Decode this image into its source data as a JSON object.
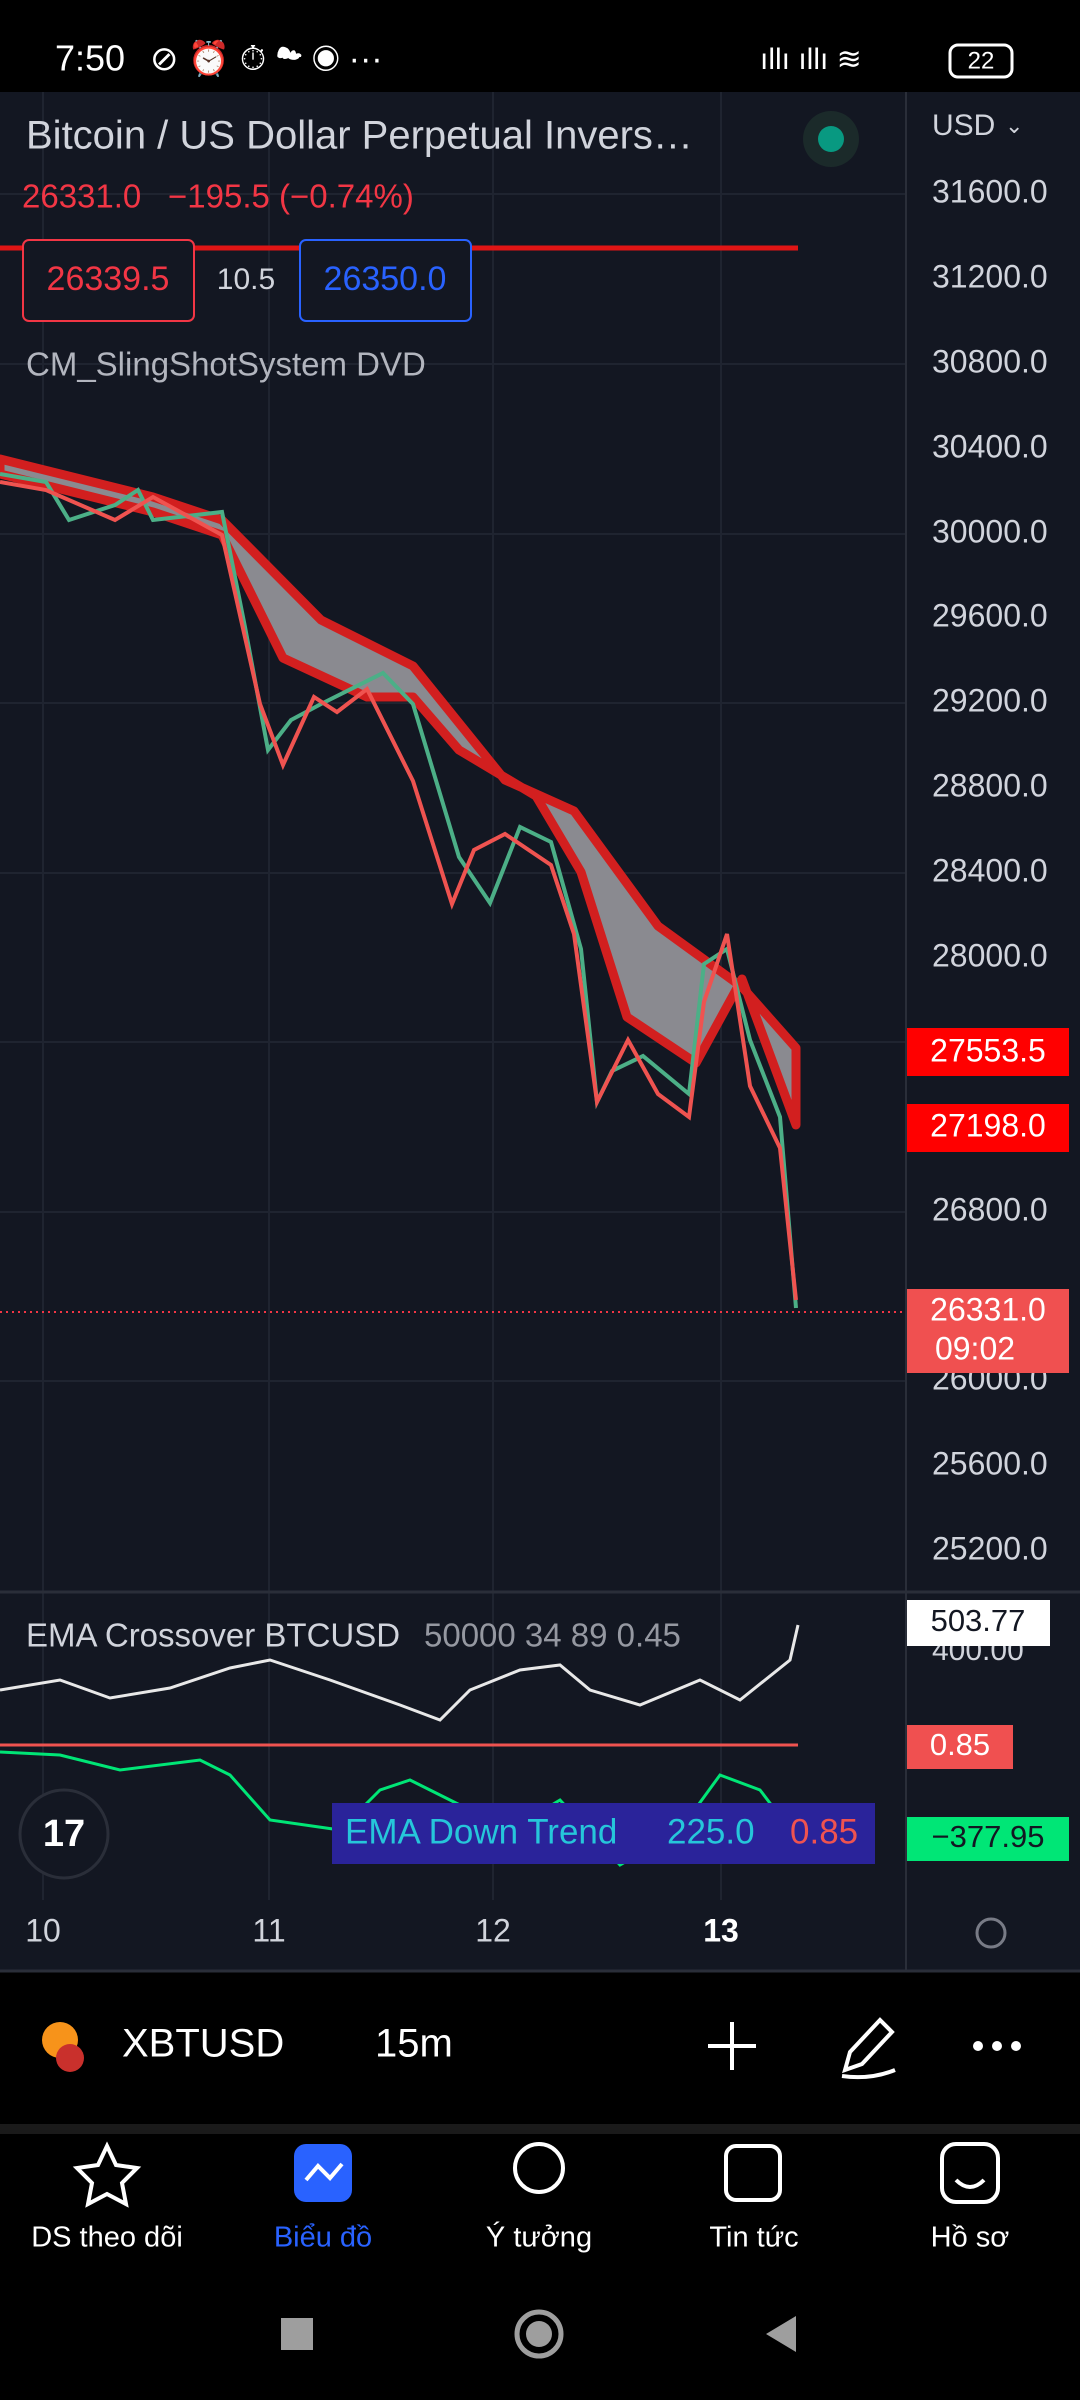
{
  "status": {
    "time": "7:50",
    "battery": "22"
  },
  "header": {
    "title": "Bitcoin / US Dollar Perpetual Invers…",
    "currency": "USD",
    "price": "26331.0",
    "change": "−195.5 (−0.74%)",
    "bid": "26339.5",
    "spread": "10.5",
    "ask": "26350.0",
    "indicator": "CM_SlingShotSystem DVD"
  },
  "price_axis": {
    "labels": [
      "31600.0",
      "31200.0",
      "30800.0",
      "30400.0",
      "30000.0",
      "29600.0",
      "29200.0",
      "28800.0",
      "28400.0",
      "28000.0",
      "26800.0",
      "26000.0",
      "25600.0",
      "25200.0"
    ],
    "marker_upper": "27553.5",
    "marker_lower": "27198.0",
    "last_price": "26331.0",
    "countdown": "09:02"
  },
  "lower_pane": {
    "indicator": "EMA Crossover BTCUSD",
    "params": "50000 34 89 0.45",
    "axis_label": "400.00",
    "value_top": "503.77",
    "value_mid": "0.85",
    "value_bottom": "−377.95",
    "legend": {
      "name": "EMA Down Trend",
      "value1": "225.0",
      "value2": "0.85"
    }
  },
  "x_axis": [
    "10",
    "11",
    "12",
    "13"
  ],
  "toolbar": {
    "symbol": "XBTUSD",
    "interval": "15m"
  },
  "nav": [
    "DS theo dõi",
    "Biểu đồ",
    "Ý tưởng",
    "Tin tức",
    "Hồ sơ"
  ]
}
